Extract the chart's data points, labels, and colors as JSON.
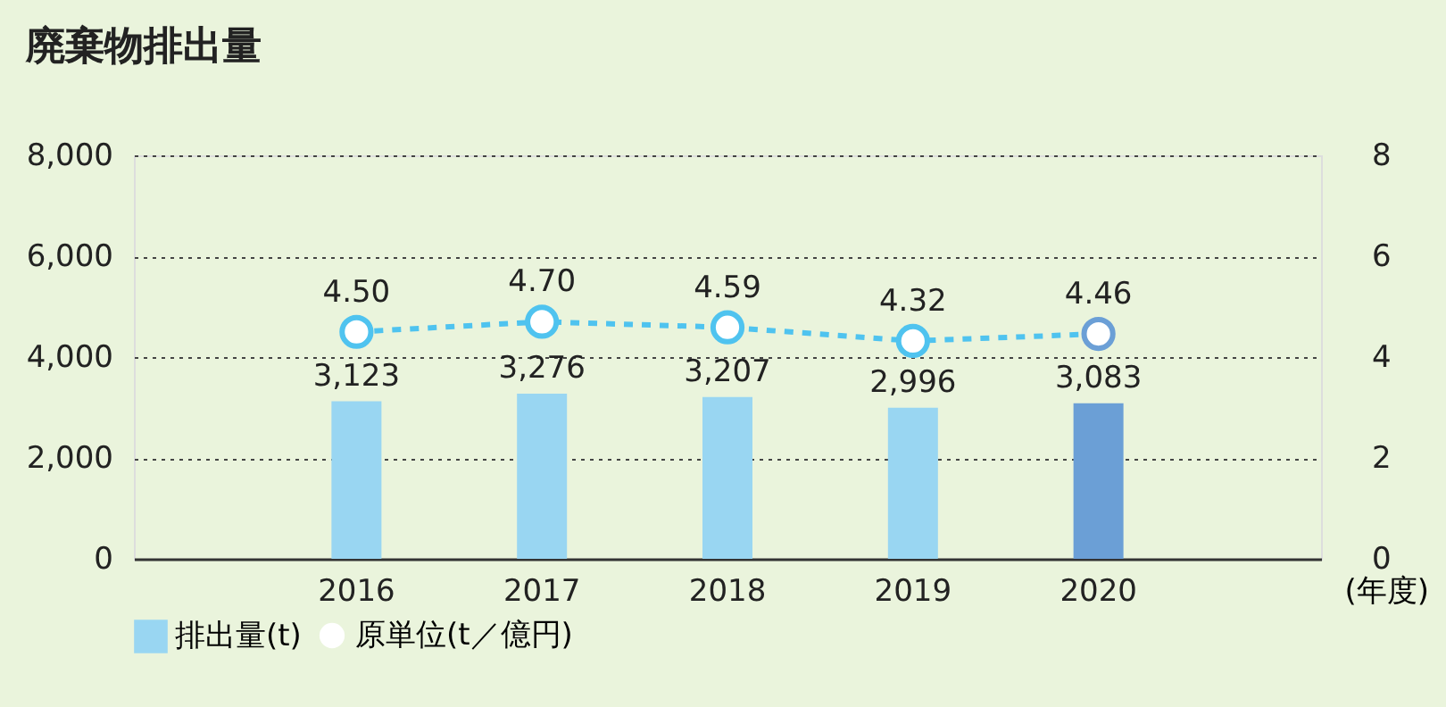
{
  "chart_data": {
    "type": "bar",
    "title": "廃棄物排出量",
    "xlabel": "(年度)",
    "categories": [
      "2016",
      "2017",
      "2018",
      "2019",
      "2020"
    ],
    "series": [
      {
        "name": "排出量(t)",
        "type": "bar",
        "color": "#99d6f2",
        "colors": [
          "#99d6f2",
          "#99d6f2",
          "#99d6f2",
          "#99d6f2",
          "#6b9fd6"
        ],
        "values": [
          3123,
          3276,
          3207,
          2996,
          3083
        ],
        "value_labels": [
          "3,123",
          "3,276",
          "3,207",
          "2,996",
          "3,083"
        ]
      },
      {
        "name": "原単位(t／億円)",
        "type": "line",
        "axis": "y2",
        "color": "#4fc3ef",
        "colors": [
          "#4fc3ef",
          "#4fc3ef",
          "#4fc3ef",
          "#4fc3ef",
          "#6b9fd6"
        ],
        "values": [
          4.5,
          4.7,
          4.59,
          4.32,
          4.46
        ],
        "value_labels": [
          "4.50",
          "4.70",
          "4.59",
          "4.32",
          "4.46"
        ],
        "marker": "circle",
        "line_style": "dashed"
      }
    ],
    "ylim": [
      0,
      8000
    ],
    "yticks": [
      {
        "value": 0,
        "label": "0"
      },
      {
        "value": 2000,
        "label": "2,000"
      },
      {
        "value": 4000,
        "label": "4,000"
      },
      {
        "value": 6000,
        "label": "6,000"
      },
      {
        "value": 8000,
        "label": "8,000"
      }
    ],
    "y2lim": [
      0,
      8
    ],
    "y2ticks": [
      0,
      2,
      4,
      6,
      8
    ],
    "grid": "y",
    "legend": "bottom left"
  }
}
